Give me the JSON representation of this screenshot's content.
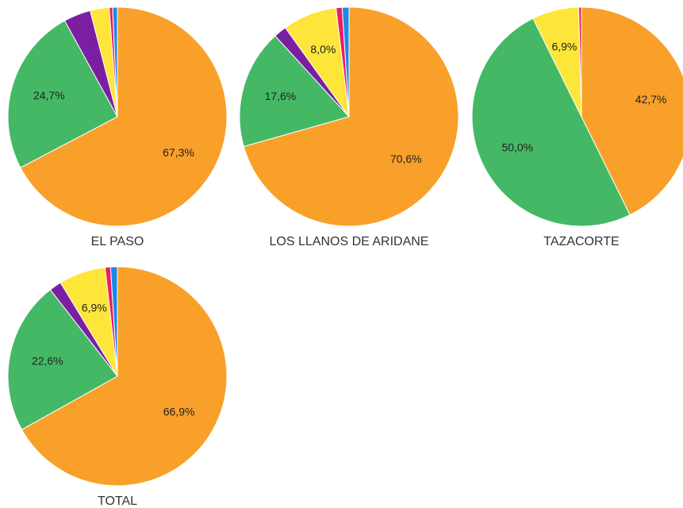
{
  "chart_data": [
    {
      "type": "pie",
      "title": "EL PASO",
      "values": [
        67.3,
        24.7,
        4.0,
        2.8,
        0.5,
        0.7
      ],
      "value_labels": [
        "67,3%",
        "24,7%",
        null,
        null,
        null,
        null
      ],
      "colors": [
        "#f9a02a",
        "#45b865",
        "#7b1fa2",
        "#fde53a",
        "#e91e63",
        "#1e88e5"
      ]
    },
    {
      "type": "pie",
      "title": "LOS LLANOS DE ARIDANE",
      "values": [
        70.6,
        17.6,
        1.9,
        8.0,
        0.9,
        1.0
      ],
      "value_labels": [
        "70,6%",
        "17,6%",
        null,
        "8,0%",
        null,
        null
      ],
      "colors": [
        "#f9a02a",
        "#45b865",
        "#7b1fa2",
        "#fde53a",
        "#e91e63",
        "#1e88e5"
      ]
    },
    {
      "type": "pie",
      "title": "TAZACORTE",
      "values": [
        42.7,
        50.0,
        6.9,
        0.4
      ],
      "value_labels": [
        "42,7%",
        "50,0%",
        "6,9%",
        null
      ],
      "colors": [
        "#f9a02a",
        "#45b865",
        "#fde53a",
        "#e91e63"
      ]
    },
    {
      "type": "pie",
      "title": "TOTAL",
      "values": [
        66.9,
        22.6,
        1.8,
        6.9,
        0.8,
        1.0
      ],
      "value_labels": [
        "66,9%",
        "22,6%",
        null,
        "6,9%",
        null,
        null
      ],
      "colors": [
        "#f9a02a",
        "#45b865",
        "#7b1fa2",
        "#fde53a",
        "#e91e63",
        "#1e88e5"
      ]
    }
  ]
}
